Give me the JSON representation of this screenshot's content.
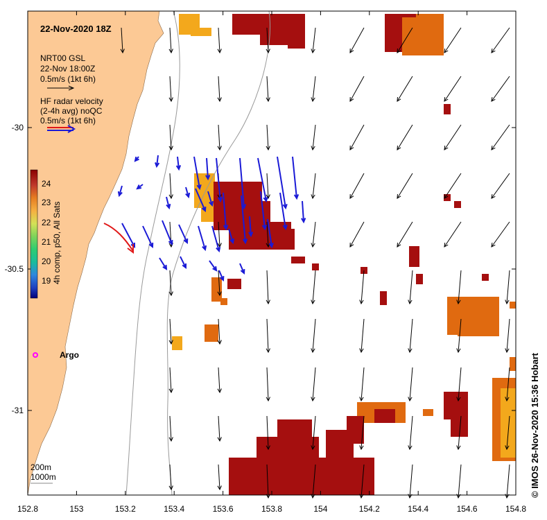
{
  "title": "22-Nov-2020 18Z",
  "legend": {
    "model_name": "NRT00 GSL",
    "model_time": "22-Nov 18:00Z",
    "model_scale": "0.5m/s (1kt 6h)",
    "radar_line1": "HF radar velocity",
    "radar_line2": "(2-4h avg) noQC",
    "radar_scale": "0.5m/s (1kt 6h)"
  },
  "colorbar": {
    "label": "4h comp, p50, All Sats",
    "ticks": [
      "24",
      "23",
      "22",
      "21",
      "20",
      "19"
    ],
    "colors": [
      "#8b0000",
      "#b22222",
      "#d2691e",
      "#f39c12",
      "#ffd700",
      "#adff2f",
      "#32cd32",
      "#00ced1",
      "#1e90ff",
      "#0000cd",
      "#00008b"
    ]
  },
  "depth_labels": {
    "d200": "200m",
    "d1000": "1000m"
  },
  "argo_label": "Argo",
  "credit": "© IMOS 26-Nov-2020 15:36 Hobart",
  "axes": {
    "x_ticks": [
      "152.8",
      "153",
      "153.2",
      "153.4",
      "153.6",
      "153.8",
      "154",
      "154.2",
      "154.4",
      "154.6",
      "154.8"
    ],
    "y_ticks": [
      "-30",
      "-30.5",
      "-31"
    ]
  },
  "colors": {
    "land": "#fcc995",
    "sst_warm": "#a50f0f",
    "sst_orange": "#e06a10",
    "sst_yellow": "#f3a81c",
    "radar": "#1a1ad6",
    "model": "#000000",
    "drifter": "#e01818",
    "argo": "#ff00ff"
  }
}
